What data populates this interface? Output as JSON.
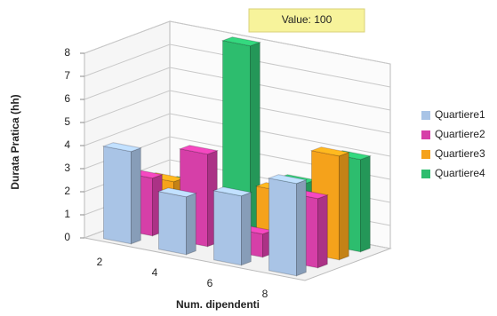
{
  "chart_data": {
    "type": "bar3d",
    "x_label": "Num. dipendenti",
    "y_label": "Durata Pratica (hh)",
    "tooltip": "Value: 100",
    "categories": [
      "2",
      "4",
      "6",
      "8"
    ],
    "series": [
      {
        "name": "Quartiere1",
        "color": "#a9c4e6",
        "values": [
          4,
          2.5,
          3,
          4
        ]
      },
      {
        "name": "Quartiere2",
        "color": "#d63fa8",
        "values": [
          2.5,
          4,
          1,
          3
        ]
      },
      {
        "name": "Quartiere3",
        "color": "#f5a21b",
        "values": [
          2,
          1.5,
          2.5,
          4.5
        ]
      },
      {
        "name": "Quartiere4",
        "color": "#2dbd6e",
        "values": [
          1.5,
          8,
          2.5,
          4
        ]
      }
    ],
    "ylim": [
      0,
      8
    ],
    "yticks": [
      0,
      1,
      2,
      3,
      4,
      5,
      6,
      7,
      8
    ],
    "grid": true,
    "legend": "right"
  }
}
